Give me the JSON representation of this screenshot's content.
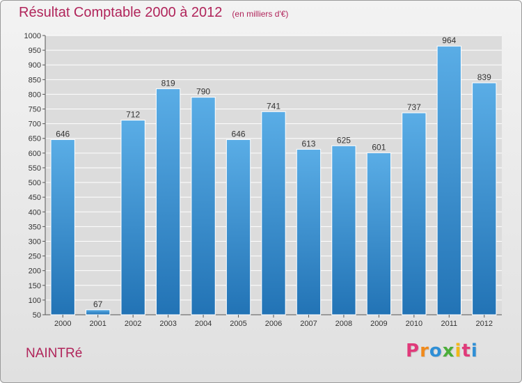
{
  "chart_data": {
    "type": "bar",
    "title": "Résultat Comptable 2000 à 2012",
    "subtitle": "(en milliers d'€)",
    "categories": [
      "2000",
      "2001",
      "2002",
      "2003",
      "2004",
      "2005",
      "2006",
      "2007",
      "2008",
      "2009",
      "2010",
      "2011",
      "2012"
    ],
    "values": [
      646,
      67,
      712,
      819,
      790,
      646,
      741,
      613,
      625,
      601,
      737,
      964,
      839
    ],
    "value_labels": [
      "646",
      "67",
      "712",
      "819",
      "790",
      "646",
      "741",
      "613",
      "625",
      "601",
      "737",
      "964",
      "839"
    ],
    "ylim": [
      50,
      1000
    ],
    "yticks": [
      50,
      100,
      150,
      200,
      250,
      300,
      350,
      400,
      450,
      500,
      550,
      600,
      650,
      700,
      750,
      800,
      850,
      900,
      950,
      1000
    ],
    "ytick_labels": [
      "50",
      "100",
      "150",
      "200",
      "250",
      "300",
      "350",
      "400",
      "450",
      "500",
      "550",
      "600",
      "650",
      "700",
      "750",
      "800",
      "850",
      "900",
      "950",
      "1000"
    ],
    "grid": true,
    "bar_color_top": "#5aade6",
    "bar_color_bottom": "#2273b5",
    "grid_color": "#ffffff"
  },
  "commune": "NAINTRé",
  "brand": {
    "letters": [
      "P",
      "r",
      "o",
      "x",
      "i",
      "t",
      "i"
    ],
    "colors": [
      "#e03a7a",
      "#f08a1c",
      "#2f8fd6",
      "#4cae3a",
      "#f2b81a",
      "#e03a7a",
      "#2f8fd6"
    ]
  },
  "colors": {
    "title": "#b0245a",
    "axis_text": "#333333",
    "label_text": "#333333"
  }
}
